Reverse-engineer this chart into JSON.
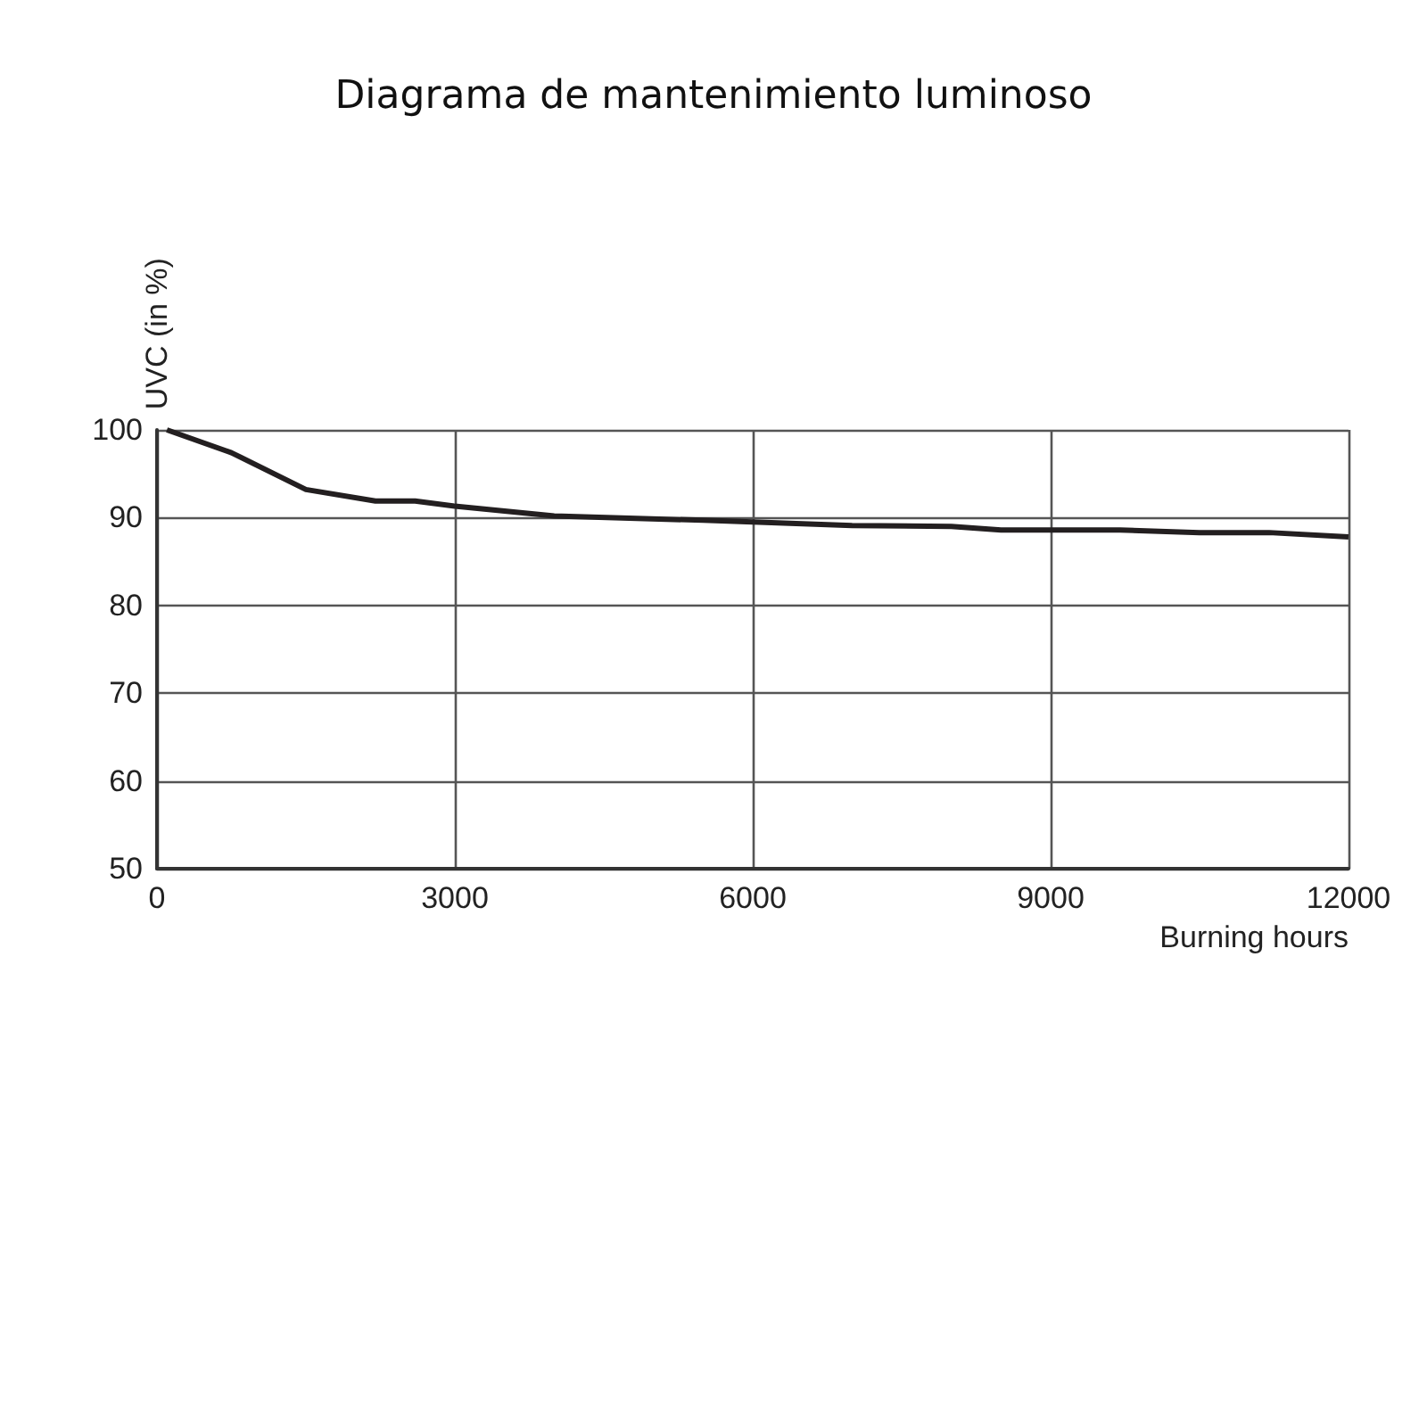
{
  "chart_data": {
    "type": "line",
    "title": "Diagrama de mantenimiento luminoso",
    "xlabel": "Burning hours",
    "ylabel": "UVC (in %)",
    "x": [
      100,
      750,
      1500,
      2200,
      2600,
      3000,
      4000,
      5500,
      7000,
      8000,
      8500,
      9700,
      10500,
      11200,
      12000
    ],
    "series": [
      {
        "color": "#231f20",
        "values": [
          100,
          97.4,
          93.2,
          91.9,
          91.9,
          91.3,
          90.2,
          89.7,
          89.1,
          89.0,
          88.6,
          88.6,
          88.3,
          88.3,
          87.8
        ]
      }
    ],
    "xlim": [
      0,
      12000
    ],
    "xticks": [
      0,
      3000,
      6000,
      9000,
      12000
    ],
    "ylim": [
      50,
      100
    ],
    "yticks": [
      50,
      60,
      70,
      80,
      90,
      100
    ],
    "grid": true,
    "marker": "none",
    "line_style": "solid"
  }
}
